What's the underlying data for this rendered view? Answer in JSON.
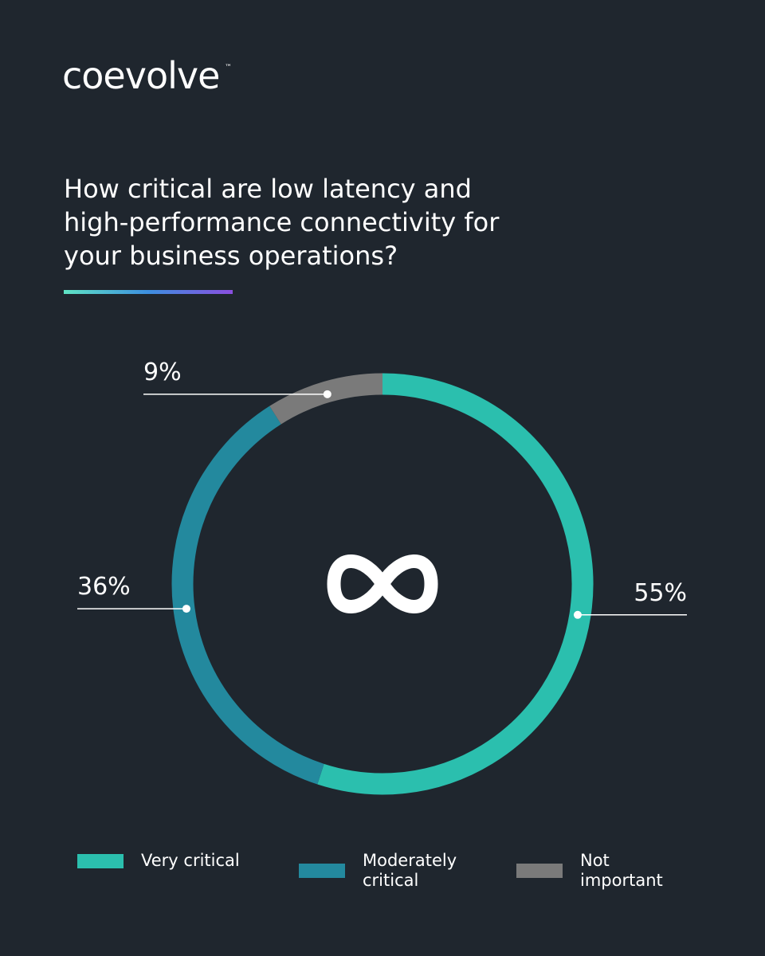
{
  "header": {
    "logo": "coevolve",
    "trademark": "™"
  },
  "chart_data": {
    "type": "donut",
    "title": "How critical are low latency and high-performance connectivity for your business operations?",
    "categories": [
      "Very critical",
      "Moderately critical",
      "Not important"
    ],
    "values": [
      55,
      36,
      9
    ],
    "value_labels": [
      "55%",
      "36%",
      "9%"
    ],
    "colors": [
      "#2bbfae",
      "#23899e",
      "#7a7a7a"
    ]
  }
}
